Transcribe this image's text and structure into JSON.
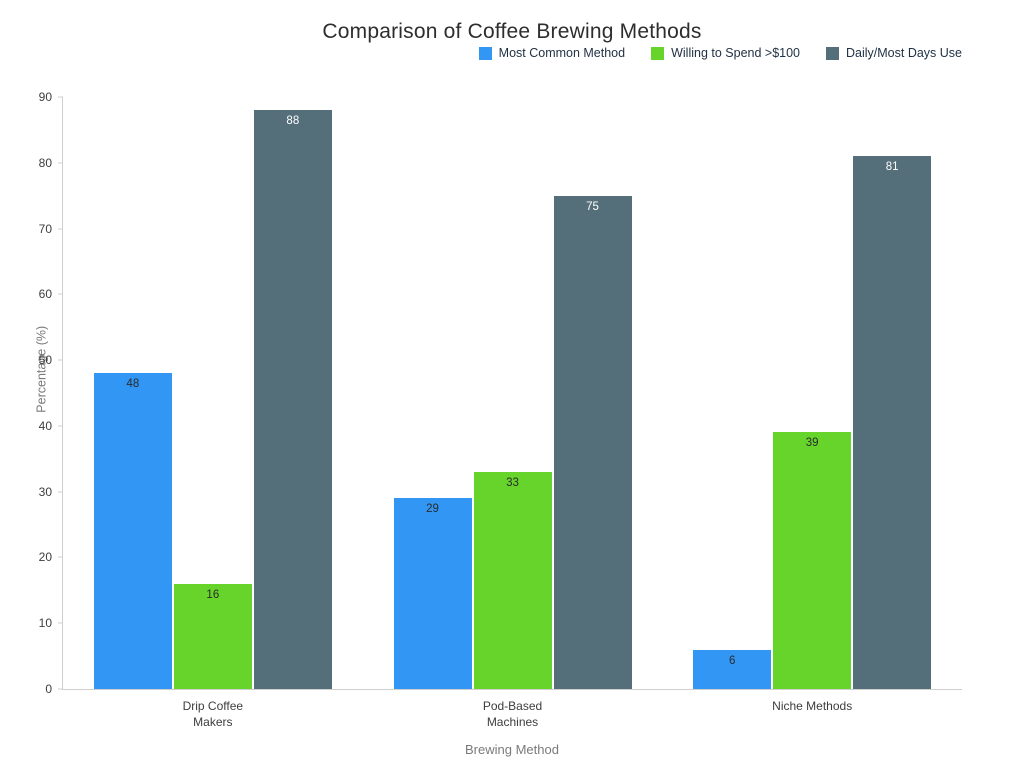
{
  "chart_data": {
    "type": "bar",
    "title": "Comparison of Coffee Brewing Methods",
    "xlabel": "Brewing Method",
    "ylabel": "Percentage (%)",
    "categories": [
      "Drip Coffee\nMakers",
      "Pod-Based\nMachines",
      "Niche Methods"
    ],
    "series": [
      {
        "name": "Most Common Method",
        "color": "#3296f5",
        "label_color": "#2b2b2b",
        "values": [
          48,
          29,
          6
        ]
      },
      {
        "name": "Willing to Spend >$100",
        "color": "#66d42b",
        "label_color": "#2b2b2b",
        "values": [
          16,
          33,
          39
        ]
      },
      {
        "name": "Daily/Most Days Use",
        "color": "#546e7a",
        "label_color": "#ffffff",
        "values": [
          88,
          75,
          81
        ]
      }
    ],
    "ylim": [
      0,
      90
    ],
    "yticks": [
      0,
      10,
      20,
      30,
      40,
      50,
      60,
      70,
      80,
      90
    ],
    "legend_position": "top-right",
    "grid": false
  }
}
